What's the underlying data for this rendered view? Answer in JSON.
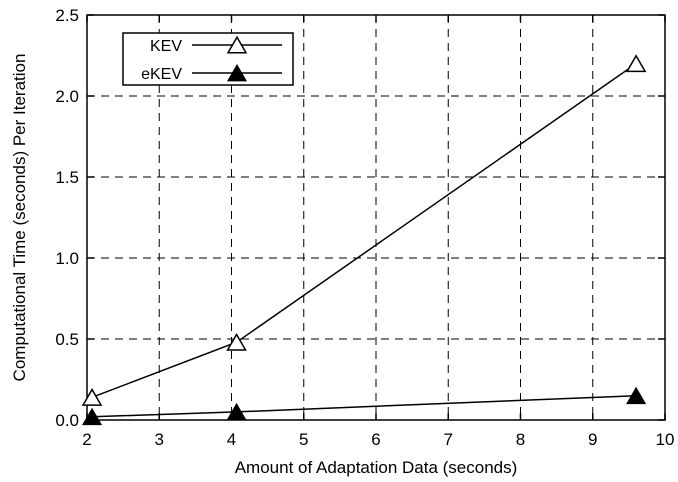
{
  "chart_data": {
    "type": "line",
    "xlabel": "Amount of Adaptation Data (seconds)",
    "ylabel": "Computational Time (seconds) Per Iteration",
    "xlim": [
      2,
      10
    ],
    "ylim": [
      0,
      2.5
    ],
    "xticks": [
      "2",
      "3",
      "4",
      "5",
      "6",
      "7",
      "8",
      "9",
      "10"
    ],
    "yticks": [
      "0.0",
      "0.5",
      "1.0",
      "1.5",
      "2.0",
      "2.5"
    ],
    "grid": true,
    "legend_position": "top-left",
    "series": [
      {
        "name": "KEV",
        "marker": "open-triangle",
        "x": [
          2.07,
          4.07,
          9.6
        ],
        "values": [
          0.14,
          0.48,
          2.2
        ]
      },
      {
        "name": "eKEV",
        "marker": "filled-triangle",
        "x": [
          2.07,
          4.07,
          9.6
        ],
        "values": [
          0.02,
          0.05,
          0.15
        ]
      }
    ]
  }
}
